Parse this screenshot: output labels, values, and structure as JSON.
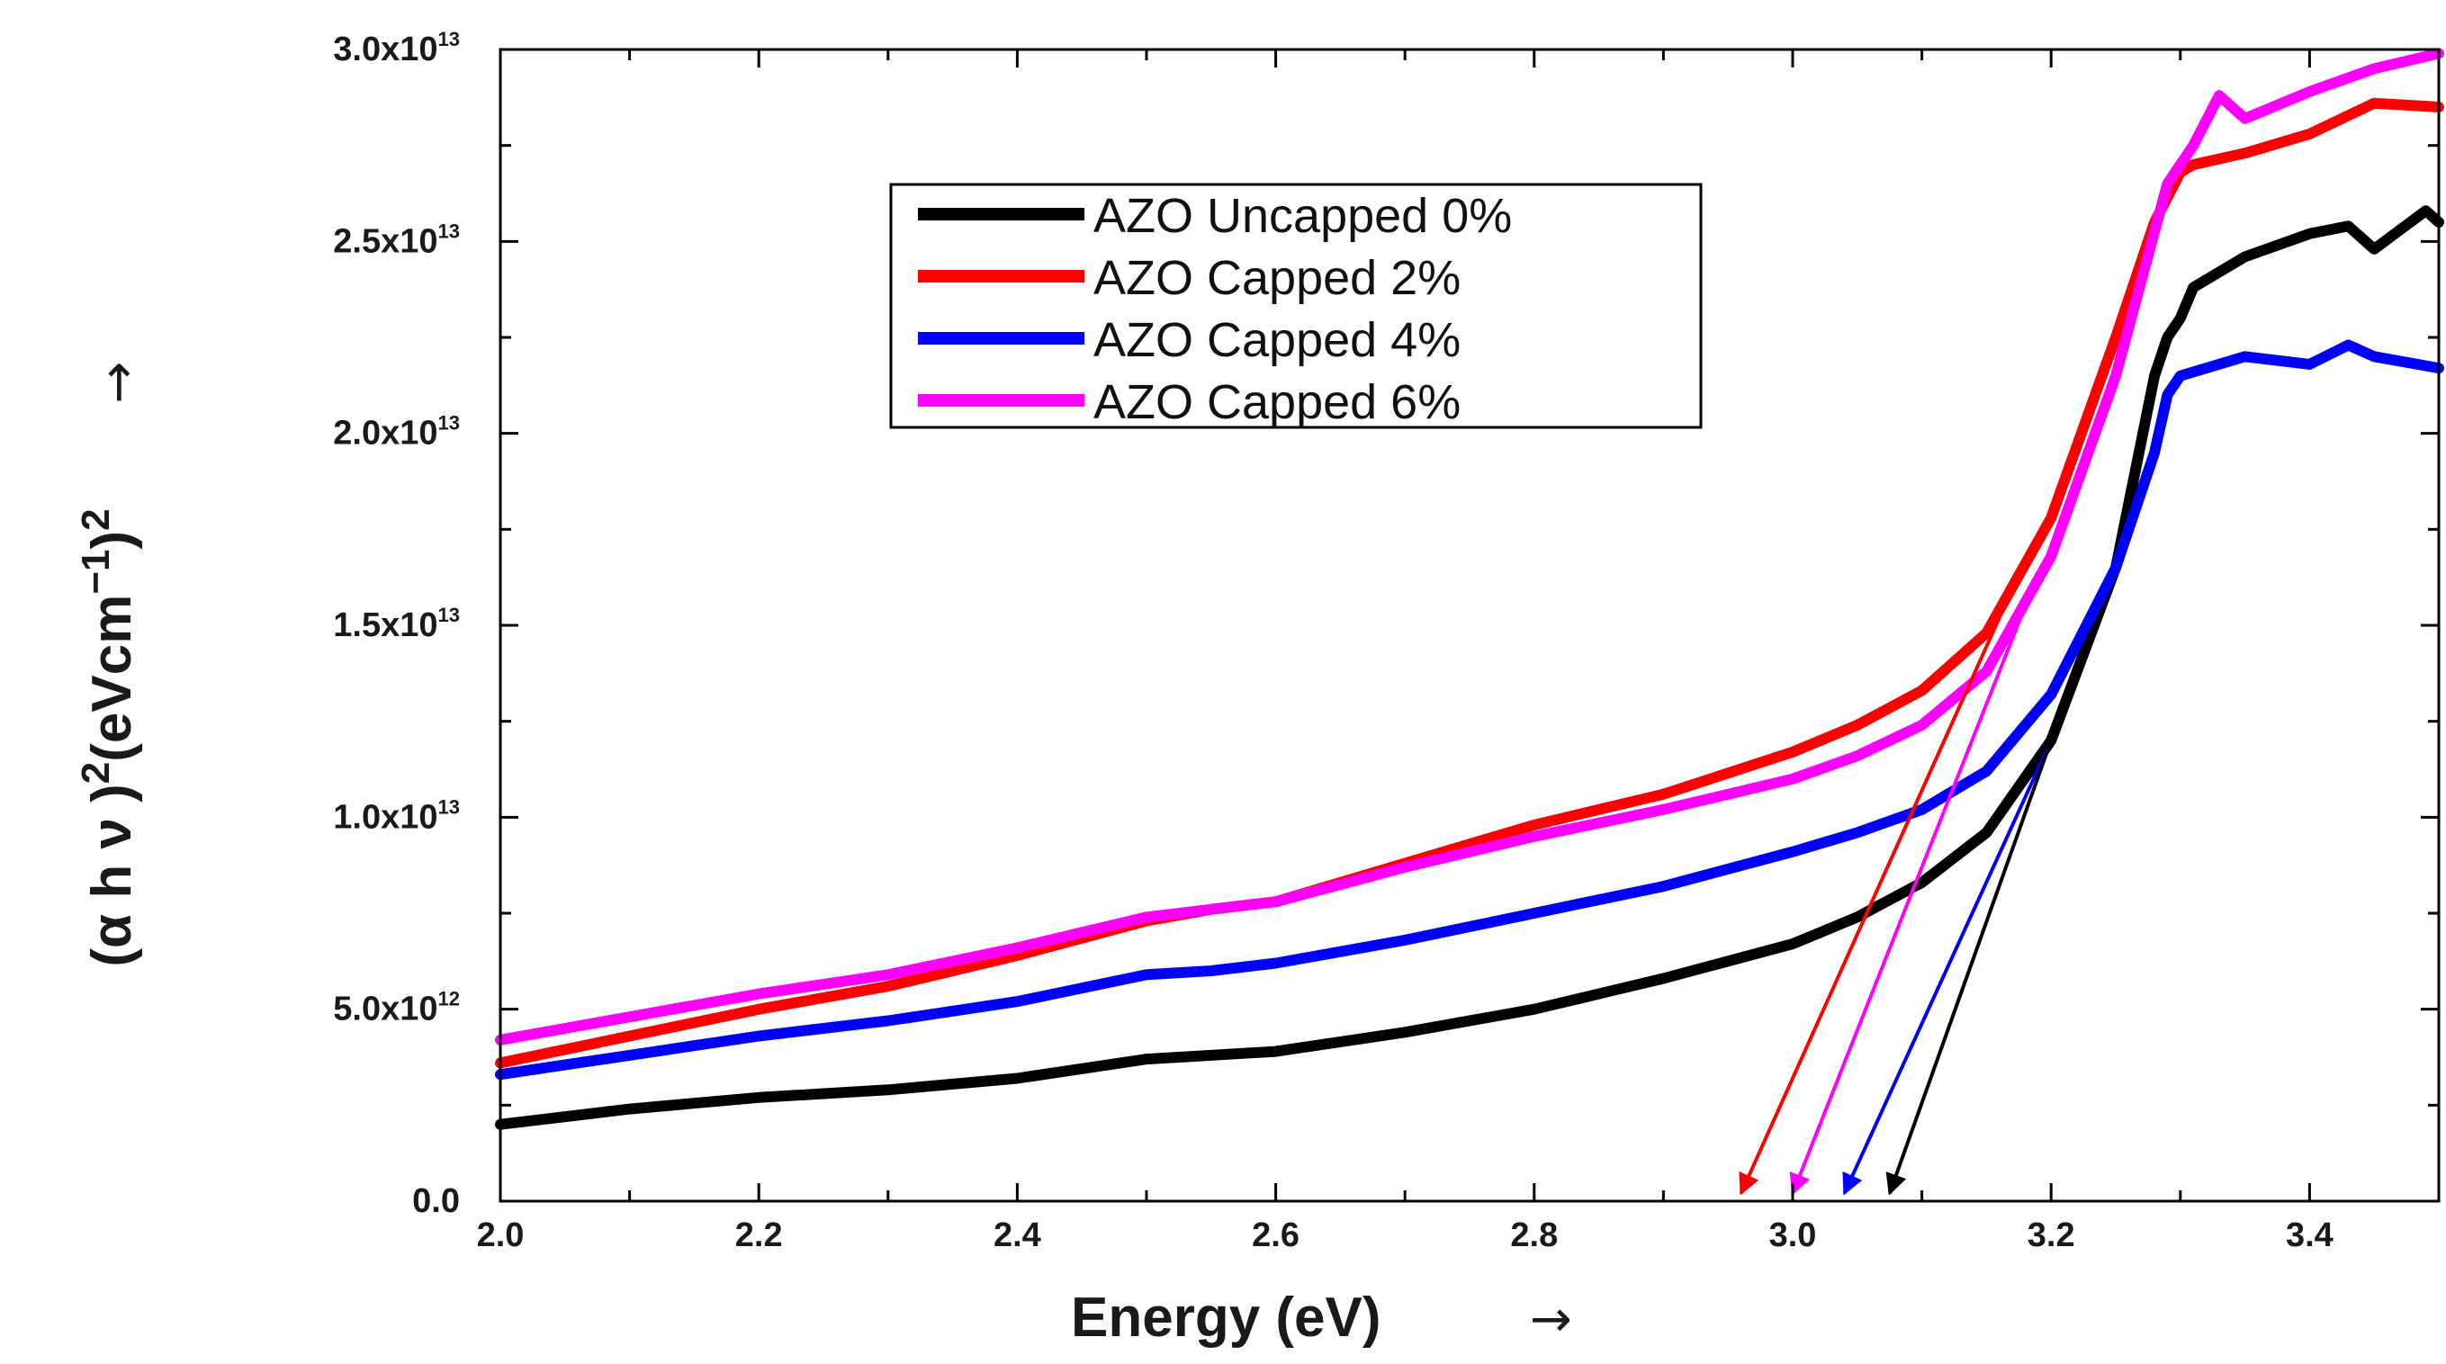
{
  "chart_data": {
    "type": "line",
    "title": "",
    "xlabel": "Energy (eV)",
    "ylabel_parts": [
      "(α h ν )",
      "2",
      "(eVcm",
      "−1",
      ")",
      "2"
    ],
    "axis_arrow": "→",
    "xlim": [
      2.0,
      3.5
    ],
    "ylim": [
      0,
      30
    ],
    "y_unit_note": "values in units of 1e12",
    "x_ticks": [
      "2.0",
      "2.2",
      "2.4",
      "2.6",
      "2.8",
      "3.0",
      "3.2",
      "3.4"
    ],
    "x_tick_values": [
      2.0,
      2.2,
      2.4,
      2.6,
      2.8,
      3.0,
      3.2,
      3.4
    ],
    "y_ticks": [
      {
        "value": 0,
        "label": "0.0",
        "exp": ""
      },
      {
        "value": 5,
        "label": "5.0x10",
        "exp": "12"
      },
      {
        "value": 10,
        "label": "1.0x10",
        "exp": "13"
      },
      {
        "value": 15,
        "label": "1.5x10",
        "exp": "13"
      },
      {
        "value": 20,
        "label": "2.0x10",
        "exp": "13"
      },
      {
        "value": 25,
        "label": "2.5x10",
        "exp": "13"
      },
      {
        "value": 30,
        "label": "3.0x10",
        "exp": "13"
      }
    ],
    "legend_position": "upper-center",
    "series": [
      {
        "name": "AZO Uncapped 0%",
        "color": "#000000",
        "x": [
          2.0,
          2.1,
          2.2,
          2.3,
          2.4,
          2.5,
          2.55,
          2.6,
          2.7,
          2.8,
          2.9,
          3.0,
          3.05,
          3.1,
          3.15,
          3.2,
          3.25,
          3.28,
          3.29,
          3.3,
          3.31,
          3.35,
          3.4,
          3.43,
          3.45,
          3.47,
          3.49,
          3.5
        ],
        "y": [
          2.0,
          2.4,
          2.7,
          2.9,
          3.2,
          3.7,
          3.8,
          3.9,
          4.4,
          5.0,
          5.8,
          6.7,
          7.4,
          8.3,
          9.6,
          12.0,
          16.5,
          21.5,
          22.5,
          23.0,
          23.8,
          24.6,
          25.2,
          25.4,
          24.8,
          25.3,
          25.8,
          25.5
        ]
      },
      {
        "name": "AZO Capped 2%",
        "color": "#ff0000",
        "x": [
          2.0,
          2.1,
          2.2,
          2.3,
          2.4,
          2.5,
          2.55,
          2.6,
          2.7,
          2.8,
          2.9,
          3.0,
          3.05,
          3.1,
          3.15,
          3.2,
          3.25,
          3.28,
          3.3,
          3.31,
          3.35,
          3.4,
          3.45,
          3.5
        ],
        "y": [
          3.6,
          4.3,
          5.0,
          5.6,
          6.4,
          7.3,
          7.6,
          7.8,
          8.8,
          9.8,
          10.6,
          11.7,
          12.4,
          13.3,
          14.8,
          17.8,
          22.5,
          25.5,
          26.8,
          27.0,
          27.3,
          27.8,
          28.6,
          28.5
        ]
      },
      {
        "name": "AZO Capped 4%",
        "color": "#0000ff",
        "x": [
          2.0,
          2.1,
          2.2,
          2.3,
          2.4,
          2.5,
          2.55,
          2.6,
          2.7,
          2.8,
          2.9,
          3.0,
          3.05,
          3.1,
          3.15,
          3.2,
          3.25,
          3.28,
          3.29,
          3.3,
          3.35,
          3.4,
          3.43,
          3.45,
          3.5
        ],
        "y": [
          3.3,
          3.8,
          4.3,
          4.7,
          5.2,
          5.9,
          6.0,
          6.2,
          6.8,
          7.5,
          8.2,
          9.1,
          9.6,
          10.2,
          11.2,
          13.2,
          16.5,
          19.5,
          21.0,
          21.5,
          22.0,
          21.8,
          22.3,
          22.0,
          21.7
        ]
      },
      {
        "name": "AZO Capped 6%",
        "color": "#ff00ff",
        "x": [
          2.0,
          2.1,
          2.2,
          2.3,
          2.4,
          2.5,
          2.55,
          2.6,
          2.7,
          2.8,
          2.9,
          3.0,
          3.05,
          3.1,
          3.15,
          3.2,
          3.25,
          3.29,
          3.31,
          3.33,
          3.35,
          3.4,
          3.45,
          3.5
        ],
        "y": [
          4.2,
          4.8,
          5.4,
          5.9,
          6.6,
          7.4,
          7.6,
          7.8,
          8.7,
          9.5,
          10.2,
          11.0,
          11.6,
          12.4,
          13.8,
          16.8,
          21.5,
          26.5,
          27.5,
          28.8,
          28.2,
          28.9,
          29.5,
          29.9
        ]
      }
    ],
    "tangent_arrows": [
      {
        "color": "#ff0000",
        "from": [
          3.16,
          15.2
        ],
        "to": [
          2.96,
          0.2
        ]
      },
      {
        "color": "#ff00ff",
        "from": [
          3.18,
          15.5
        ],
        "to": [
          3.0,
          0.2
        ]
      },
      {
        "color": "#0000ff",
        "from": [
          3.2,
          12.0
        ],
        "to": [
          3.04,
          0.2
        ]
      },
      {
        "color": "#000000",
        "from": [
          3.2,
          12.0
        ],
        "to": [
          3.075,
          0.2
        ]
      }
    ]
  }
}
